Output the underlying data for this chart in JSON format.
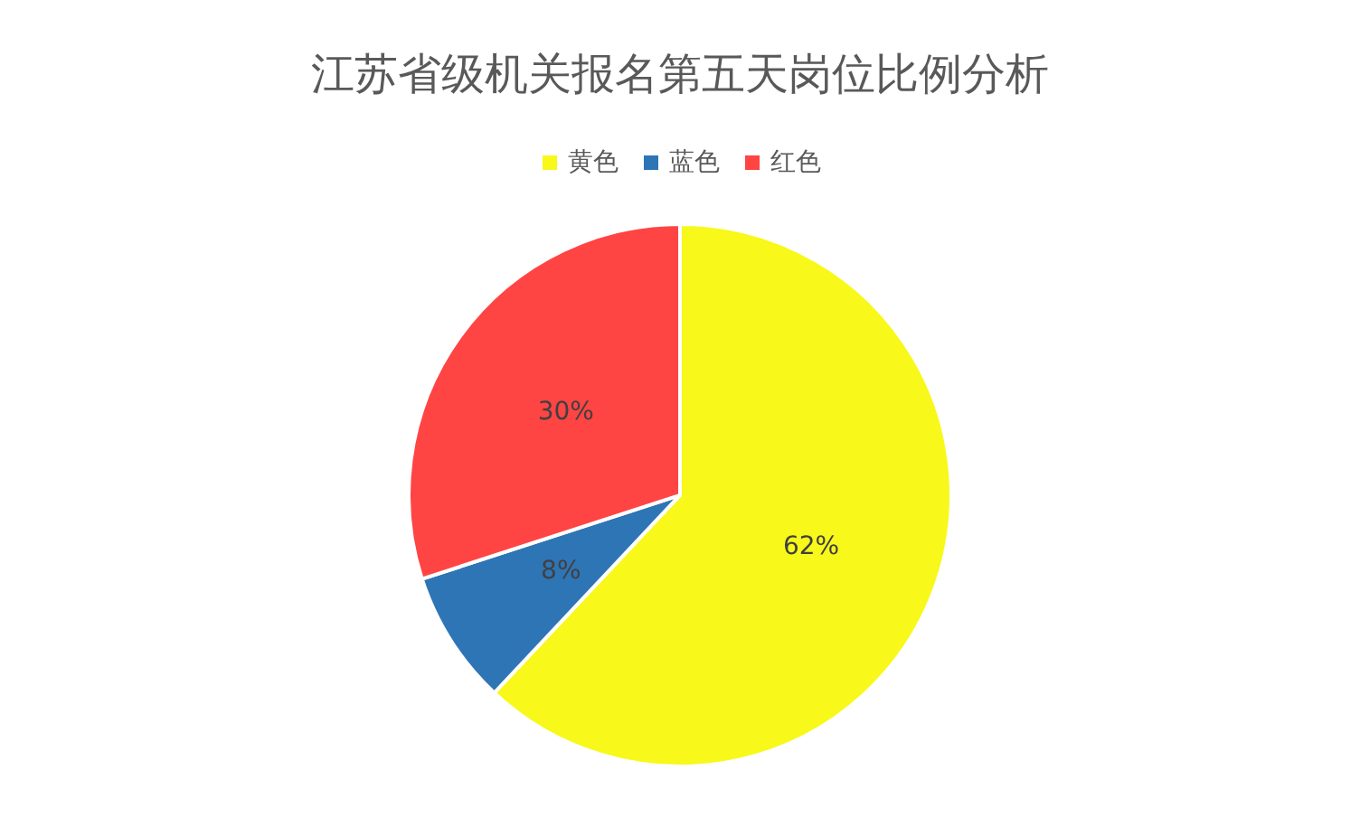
{
  "chart_data": {
    "type": "pie",
    "title": "江苏省级机关报名第五天岗位比例分析",
    "categories": [
      "黄色",
      "蓝色",
      "红色"
    ],
    "values": [
      62,
      8,
      30
    ],
    "value_labels": [
      "62%",
      "8%",
      "30%"
    ],
    "colors": [
      "#f8f81a",
      "#2e75b6",
      "#ff4444"
    ],
    "legend": "top"
  }
}
